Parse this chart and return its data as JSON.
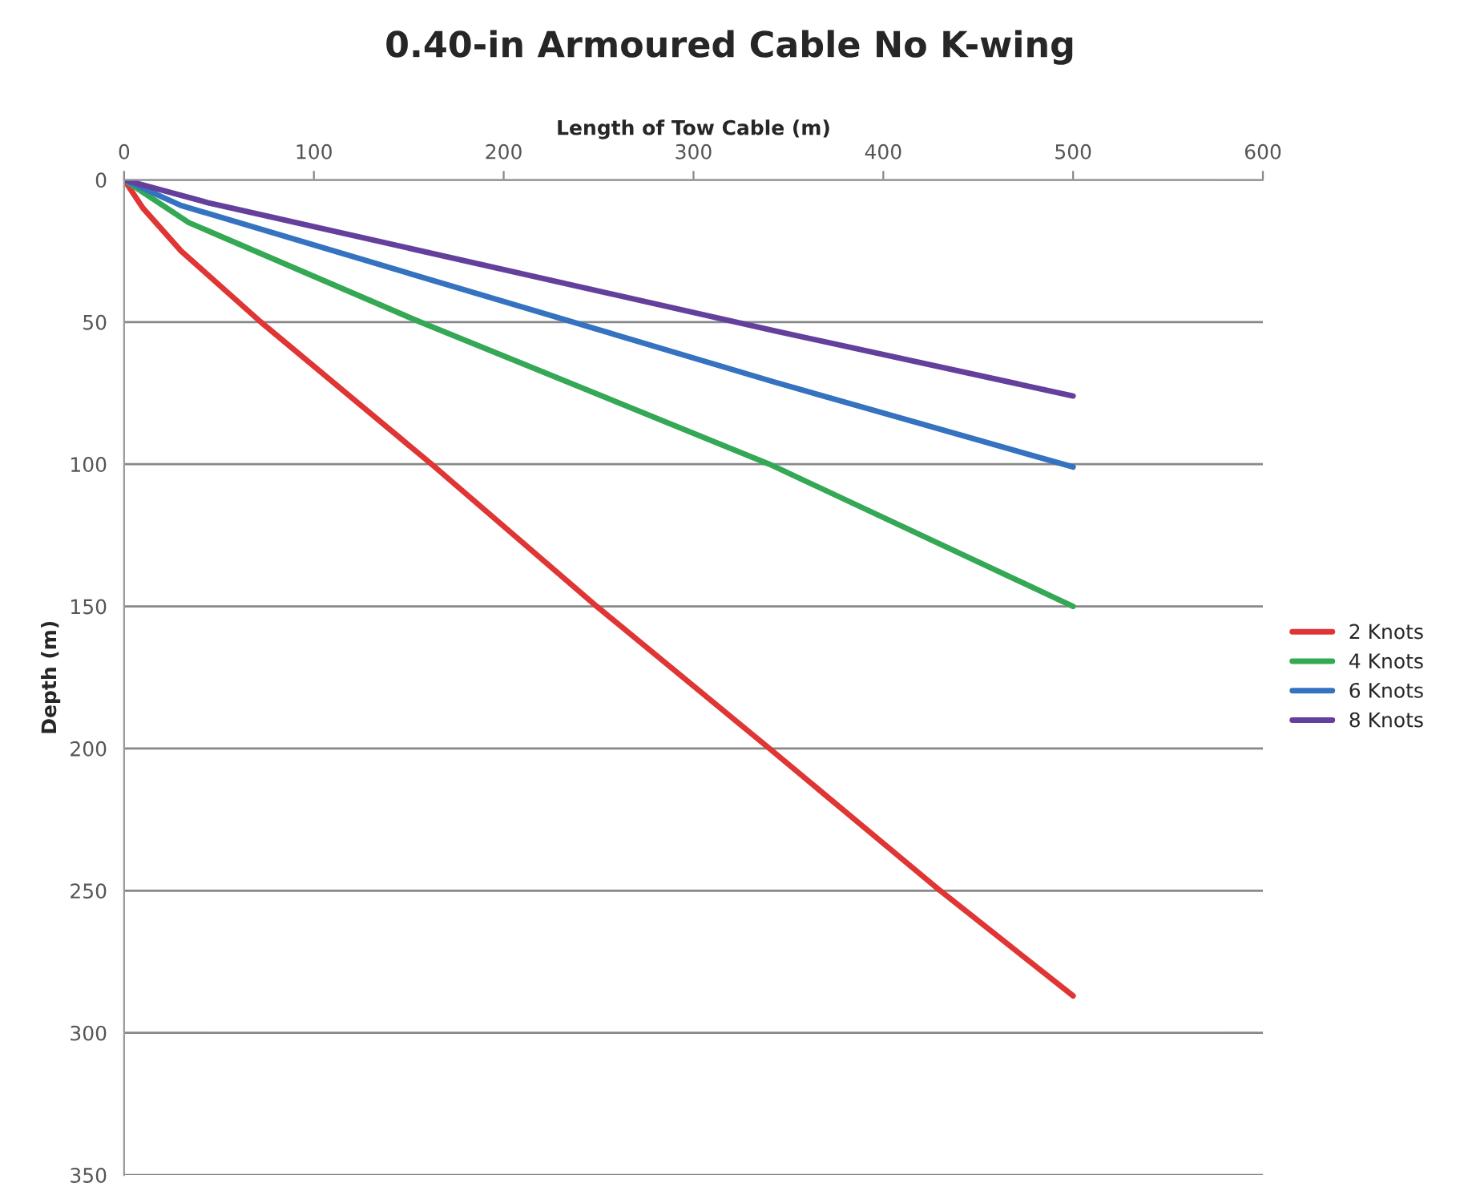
{
  "chart_data": {
    "type": "line",
    "title": "0.40-in Armoured Cable No K-wing",
    "xlabel": "Length of Tow Cable (m)",
    "ylabel": "Depth (m)",
    "xlim": [
      0,
      600
    ],
    "xticks": [
      0,
      100,
      200,
      300,
      400,
      500,
      600
    ],
    "ylim": [
      350,
      0
    ],
    "yticks": [
      0,
      50,
      100,
      150,
      200,
      250,
      300,
      350
    ],
    "grid": "y",
    "legend": "right",
    "marker": "none",
    "line_style": "solid",
    "series": [
      {
        "name": "2 Knots",
        "color": "#e03535",
        "x": [
          0,
          10,
          30,
          72,
          162,
          249,
          340,
          430,
          500
        ],
        "values": [
          0,
          10,
          25,
          50,
          100,
          150,
          200,
          250,
          287
        ]
      },
      {
        "name": "4 Knots",
        "color": "#35a855",
        "x": [
          0,
          34,
          156,
          340,
          500
        ],
        "values": [
          0,
          15,
          50,
          100,
          150
        ]
      },
      {
        "name": "6 Knots",
        "color": "#3572c0",
        "x": [
          0,
          30,
          342,
          500
        ],
        "values": [
          0,
          9,
          71,
          101
        ]
      },
      {
        "name": "8 Knots",
        "color": "#64409c",
        "x": [
          0,
          44,
          342,
          500
        ],
        "values": [
          0,
          8,
          53,
          76
        ]
      }
    ]
  }
}
